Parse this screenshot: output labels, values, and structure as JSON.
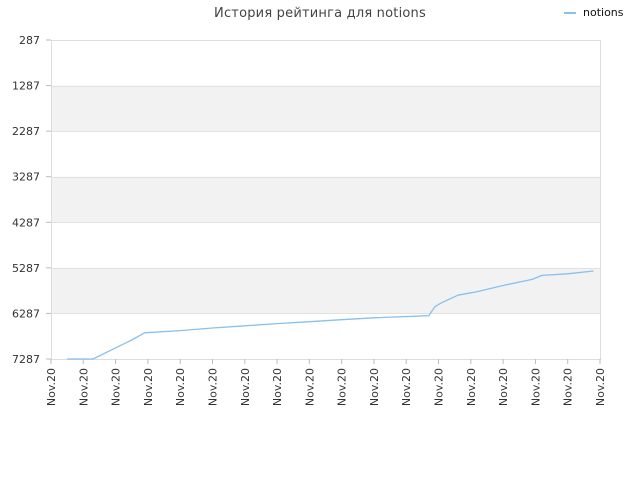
{
  "title": "История рейтинга для notions",
  "legend": {
    "label": "notions",
    "color": "#88c0ee"
  },
  "chart_data": {
    "type": "line",
    "title": "История рейтинга для notions",
    "xlabel": "",
    "ylabel": "",
    "y_inverted": true,
    "ylim": [
      7287,
      287
    ],
    "yticks": [
      287,
      1287,
      2287,
      3287,
      4287,
      5287,
      6287,
      7287
    ],
    "xticks": [
      "Nov.20",
      "Nov.20",
      "Nov.20",
      "Nov.20",
      "Nov.20",
      "Nov.20",
      "Nov.20",
      "Nov.20",
      "Nov.20",
      "Nov.20",
      "Nov.20",
      "Nov.20",
      "Nov.20",
      "Nov.20",
      "Nov.20",
      "Nov.20",
      "Nov.20",
      "Nov.20"
    ],
    "xlim": [
      0,
      17
    ],
    "grid": true,
    "legend_position": "top-right",
    "band_colors": [
      "#f2f2f2",
      "#ffffff"
    ],
    "series": [
      {
        "name": "notions",
        "color": "#88c0ee",
        "x": [
          0.5,
          1.3,
          2.5,
          2.9,
          4,
          5,
          6,
          7,
          8,
          9,
          10,
          11.7,
          11.8,
          11.9,
          12.1,
          12.6,
          13.2,
          14.1,
          14.9,
          15.2,
          16,
          16.8
        ],
        "y": [
          7287,
          7287,
          6870,
          6711,
          6663,
          6607,
          6558,
          6511,
          6469,
          6425,
          6383,
          6337,
          6230,
          6131,
          6051,
          5888,
          5808,
          5659,
          5541,
          5452,
          5417,
          5356
        ]
      }
    ]
  }
}
